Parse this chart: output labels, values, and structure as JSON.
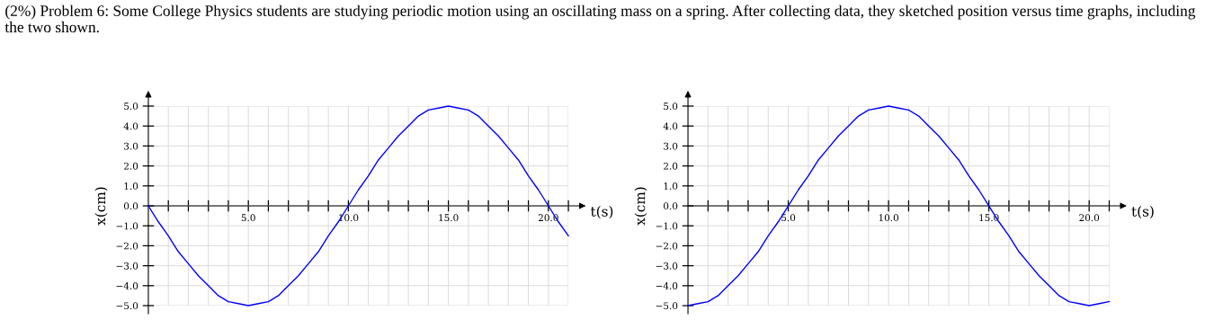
{
  "chart_data": [
    {
      "type": "line",
      "annotations": [
        "(2%) Problem 6: Some College Physics students are studying periodic motion using an oscillating mass on a spring. After collecting data, they sketched position versus time graphs, including the two shown."
      ],
      "xlabel": "t(s)",
      "ylabel": "x(cm)",
      "grid": true,
      "marker": "none",
      "line_style": "solid",
      "xlim": [
        0,
        21
      ],
      "ylim": [
        -5,
        5
      ],
      "xticks": [
        {
          "value": 1,
          "label": null
        },
        {
          "value": 2,
          "label": null
        },
        {
          "value": 3,
          "label": null
        },
        {
          "value": 4,
          "label": null
        },
        {
          "value": 5,
          "label": "5.0"
        },
        {
          "value": 6,
          "label": null
        },
        {
          "value": 7,
          "label": null
        },
        {
          "value": 8,
          "label": null
        },
        {
          "value": 9,
          "label": null
        },
        {
          "value": 10,
          "label": "10.0"
        },
        {
          "value": 11,
          "label": null
        },
        {
          "value": 12,
          "label": null
        },
        {
          "value": 13,
          "label": null
        },
        {
          "value": 14,
          "label": null
        },
        {
          "value": 15,
          "label": "15.0"
        },
        {
          "value": 16,
          "label": null
        },
        {
          "value": 17,
          "label": null
        },
        {
          "value": 18,
          "label": null
        },
        {
          "value": 19,
          "label": null
        },
        {
          "value": 20,
          "label": "20.0"
        },
        {
          "value": 21,
          "label": null
        }
      ],
      "yticks": [
        {
          "value": -5,
          "label": "−5.0"
        },
        {
          "value": -4,
          "label": "−4.0"
        },
        {
          "value": -3,
          "label": "−3.0"
        },
        {
          "value": -2,
          "label": "−2.0"
        },
        {
          "value": -1,
          "label": "−1.0"
        },
        {
          "value": 0,
          "label": "0.0"
        },
        {
          "value": 1,
          "label": "1.0"
        },
        {
          "value": 2,
          "label": "2.0"
        },
        {
          "value": 3,
          "label": "3.0"
        },
        {
          "value": 4,
          "label": "4.0"
        },
        {
          "value": 5,
          "label": "5.0"
        }
      ],
      "x": [
        0,
        0.5,
        1,
        1.5,
        2,
        2.5,
        3,
        3.5,
        4,
        4.5,
        5,
        5.5,
        6,
        6.5,
        7,
        7.5,
        8,
        8.5,
        9,
        9.5,
        10,
        10.5,
        11,
        11.5,
        12,
        12.5,
        13,
        13.5,
        14,
        14.5,
        15,
        15.5,
        16,
        16.5,
        17,
        17.5,
        18,
        18.5,
        19,
        19.5,
        20,
        20.5,
        21
      ],
      "series": [
        {
          "color": "#0000ff",
          "values": [
            0,
            -0.8,
            -1.5,
            -2.3,
            -2.9,
            -3.5,
            -4.0,
            -4.5,
            -4.8,
            -4.9,
            -5.0,
            -4.9,
            -4.8,
            -4.5,
            -4.0,
            -3.5,
            -2.9,
            -2.3,
            -1.5,
            -0.8,
            0,
            0.8,
            1.5,
            2.3,
            2.9,
            3.5,
            4.0,
            4.5,
            4.8,
            4.9,
            5.0,
            4.9,
            4.8,
            4.5,
            4.0,
            3.5,
            2.9,
            2.3,
            1.5,
            0.8,
            0,
            -0.8,
            -1.5
          ]
        }
      ]
    },
    {
      "type": "line",
      "xlabel": "t(s)",
      "ylabel": "x(cm)",
      "grid": true,
      "marker": "none",
      "line_style": "solid",
      "xlim": [
        0,
        21
      ],
      "ylim": [
        -5,
        5
      ],
      "xticks": [
        {
          "value": 1,
          "label": null
        },
        {
          "value": 2,
          "label": null
        },
        {
          "value": 3,
          "label": null
        },
        {
          "value": 4,
          "label": null
        },
        {
          "value": 5,
          "label": "5.0"
        },
        {
          "value": 6,
          "label": null
        },
        {
          "value": 7,
          "label": null
        },
        {
          "value": 8,
          "label": null
        },
        {
          "value": 9,
          "label": null
        },
        {
          "value": 10,
          "label": "10.0"
        },
        {
          "value": 11,
          "label": null
        },
        {
          "value": 12,
          "label": null
        },
        {
          "value": 13,
          "label": null
        },
        {
          "value": 14,
          "label": null
        },
        {
          "value": 15,
          "label": "15.0"
        },
        {
          "value": 16,
          "label": null
        },
        {
          "value": 17,
          "label": null
        },
        {
          "value": 18,
          "label": null
        },
        {
          "value": 19,
          "label": null
        },
        {
          "value": 20,
          "label": "20.0"
        },
        {
          "value": 21,
          "label": null
        }
      ],
      "yticks": [
        {
          "value": -5,
          "label": "−5.0"
        },
        {
          "value": -4,
          "label": "−4.0"
        },
        {
          "value": -3,
          "label": "−3.0"
        },
        {
          "value": -2,
          "label": "−2.0"
        },
        {
          "value": -1,
          "label": "−1.0"
        },
        {
          "value": 0,
          "label": "0.0"
        },
        {
          "value": 1,
          "label": "1.0"
        },
        {
          "value": 2,
          "label": "2.0"
        },
        {
          "value": 3,
          "label": "3.0"
        },
        {
          "value": 4,
          "label": "4.0"
        },
        {
          "value": 5,
          "label": "5.0"
        }
      ],
      "x": [
        0,
        0.5,
        1,
        1.5,
        2,
        2.5,
        3,
        3.5,
        4,
        4.5,
        5,
        5.5,
        6,
        6.5,
        7,
        7.5,
        8,
        8.5,
        9,
        9.5,
        10,
        10.5,
        11,
        11.5,
        12,
        12.5,
        13,
        13.5,
        14,
        14.5,
        15,
        15.5,
        16,
        16.5,
        17,
        17.5,
        18,
        18.5,
        19,
        19.5,
        20,
        20.5,
        21
      ],
      "series": [
        {
          "color": "#0000ff",
          "values": [
            -5.0,
            -4.9,
            -4.8,
            -4.5,
            -4.0,
            -3.5,
            -2.9,
            -2.3,
            -1.5,
            -0.8,
            0,
            0.8,
            1.5,
            2.3,
            2.9,
            3.5,
            4.0,
            4.5,
            4.8,
            4.9,
            5.0,
            4.9,
            4.8,
            4.5,
            4.0,
            3.5,
            2.9,
            2.3,
            1.5,
            0.8,
            0,
            -0.8,
            -1.5,
            -2.3,
            -2.9,
            -3.5,
            -4.0,
            -4.5,
            -4.8,
            -4.9,
            -5.0,
            -4.9,
            -4.8
          ]
        }
      ]
    }
  ]
}
